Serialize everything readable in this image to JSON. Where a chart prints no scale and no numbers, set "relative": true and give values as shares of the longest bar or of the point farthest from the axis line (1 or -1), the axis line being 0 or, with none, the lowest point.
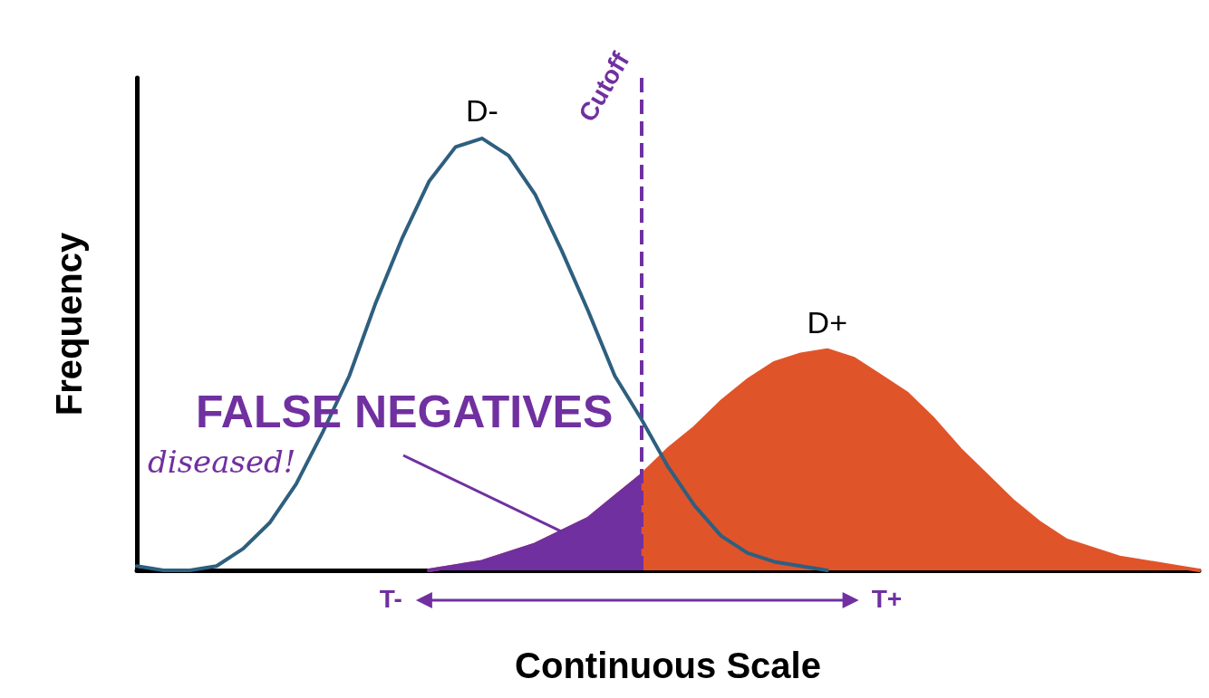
{
  "chart_data": {
    "type": "line",
    "relative": true,
    "xlabel": "Continuous Scale",
    "ylabel": "Frequency",
    "ylim": [
      0,
      1.14
    ],
    "grid": false,
    "legend": false,
    "marker": "none",
    "line_style": "solid",
    "categories": [
      null,
      null,
      null,
      null,
      null,
      null,
      null,
      null,
      null,
      null,
      null,
      null,
      null,
      null,
      null,
      null,
      null,
      null,
      null,
      null,
      null,
      null,
      null,
      null,
      null,
      null,
      null,
      null,
      null,
      null,
      null,
      null,
      null,
      null,
      null,
      null,
      null,
      null,
      null,
      null,
      null
    ],
    "series": [
      {
        "name": "D-",
        "color": "#2e5f7f",
        "values": [
          0.01,
          0,
          0,
          0.01,
          0.05,
          0.11,
          0.2,
          0.32,
          0.45,
          0.62,
          0.77,
          0.9,
          0.98,
          1,
          0.96,
          0.87,
          0.74,
          0.6,
          0.45,
          0.35,
          0.24,
          0.15,
          0.08,
          0.04,
          0.02,
          0.01,
          0,
          null,
          null,
          null,
          null,
          null,
          null,
          null,
          null,
          null,
          null,
          null,
          null,
          null,
          null
        ]
      },
      {
        "name": "D+",
        "type": "area",
        "color": "#e0542a",
        "values": [
          null,
          null,
          null,
          null,
          null,
          null,
          null,
          null,
          null,
          null,
          null,
          0,
          0.01,
          0.02,
          0.04,
          0.06,
          0.09,
          0.12,
          0.17,
          0.22,
          0.28,
          0.33,
          0.39,
          0.44,
          0.48,
          0.5,
          0.51,
          0.49,
          0.45,
          0.41,
          0.35,
          0.28,
          0.22,
          0.16,
          0.11,
          0.07,
          0.05,
          0.03,
          0.02,
          0.01,
          0
        ]
      },
      {
        "type": "area",
        "color": "#7030a0",
        "values": [
          null,
          null,
          null,
          null,
          null,
          null,
          null,
          null,
          null,
          null,
          null,
          0,
          0.01,
          0.02,
          0.04,
          0.06,
          0.09,
          0.12,
          0.17,
          0.22,
          null,
          null,
          null,
          null,
          null,
          null,
          null,
          null,
          null,
          null,
          null,
          null,
          null,
          null,
          null,
          null,
          null,
          null,
          null,
          null,
          null
        ]
      }
    ],
    "annotations": [
      "FALSE NEGATIVES",
      "diseased!",
      "T-",
      "T+",
      "Cutoff"
    ]
  }
}
